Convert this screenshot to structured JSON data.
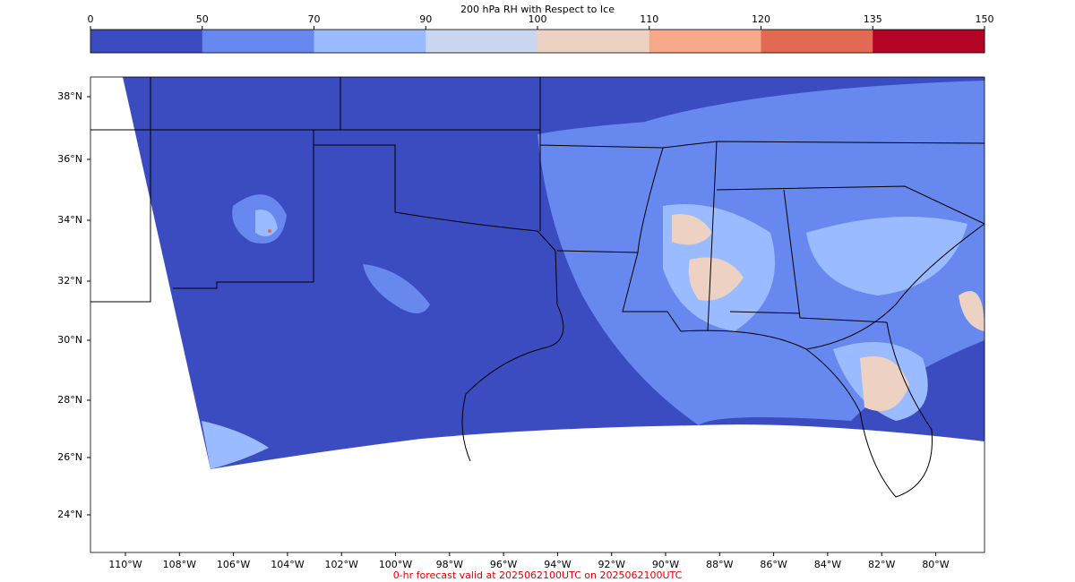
{
  "colorbar": {
    "title": "200 hPa RH with Respect to Ice",
    "ticks": [
      0,
      50,
      70,
      90,
      100,
      110,
      120,
      135,
      150
    ],
    "colors": [
      "#3b4cc0",
      "#6788ee",
      "#9abbff",
      "#c9d7f0",
      "#edd1c2",
      "#f7a889",
      "#e26952",
      "#b40426"
    ]
  },
  "lat_labels": [
    "38°N",
    "36°N",
    "34°N",
    "32°N",
    "30°N",
    "28°N",
    "26°N",
    "24°N"
  ],
  "lon_labels": [
    "110°W",
    "108°W",
    "106°W",
    "104°W",
    "102°W",
    "100°W",
    "98°W",
    "96°W",
    "94°W",
    "92°W",
    "90°W",
    "88°W",
    "86°W",
    "84°W",
    "82°W",
    "80°W"
  ],
  "footer": "0-hr forecast valid at 2025062100UTC on 2025062100UTC"
}
